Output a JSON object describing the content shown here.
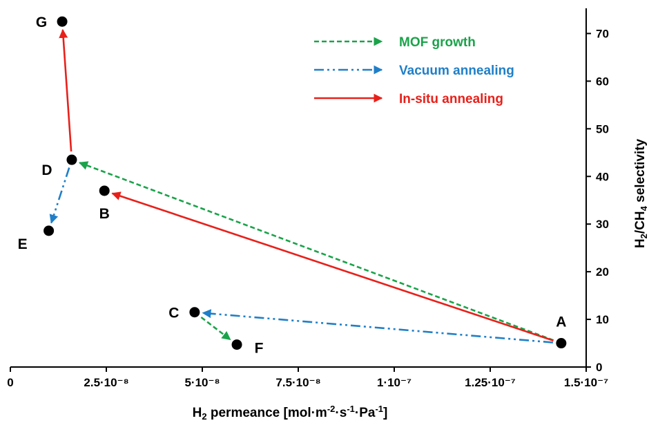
{
  "chart_data": {
    "type": "scatter",
    "xlabel": {
      "main": "H",
      "sub": "2",
      "rest": " permeance [mol·m",
      "sup1": "-2",
      "mid1": "·s",
      "sup2": "-1",
      "mid2": "·Pa",
      "sup3": "-1",
      "end": "]"
    },
    "ylabel": {
      "main": "H",
      "sub1": "2",
      "mid": "/CH",
      "sub2": "4",
      "rest": " selectivity"
    },
    "xlim": [
      0,
      1.5e-07
    ],
    "ylim": [
      0,
      75
    ],
    "x_ticks": [
      {
        "value": 0,
        "label": "0"
      },
      {
        "value": 2.5e-08,
        "label": "2.5·10⁻⁸"
      },
      {
        "value": 5e-08,
        "label": "5·10⁻⁸"
      },
      {
        "value": 7.5e-08,
        "label": "7.5·10⁻⁸"
      },
      {
        "value": 1e-07,
        "label": "1·10⁻⁷"
      },
      {
        "value": 1.25e-07,
        "label": "1.25·10⁻⁷"
      },
      {
        "value": 1.5e-07,
        "label": "1.5·10⁻⁷"
      }
    ],
    "y_ticks": [
      {
        "value": 0,
        "label": "0"
      },
      {
        "value": 10,
        "label": "10"
      },
      {
        "value": 20,
        "label": "20"
      },
      {
        "value": 30,
        "label": "30"
      },
      {
        "value": 40,
        "label": "40"
      },
      {
        "value": 50,
        "label": "50"
      },
      {
        "value": 60,
        "label": "60"
      },
      {
        "value": 70,
        "label": "70"
      }
    ],
    "y_axis_side": "right",
    "grid": false,
    "points": [
      {
        "label": "A",
        "x": 1.435e-07,
        "y": 5.0
      },
      {
        "label": "B",
        "x": 2.45e-08,
        "y": 37.0
      },
      {
        "label": "C",
        "x": 4.8e-08,
        "y": 11.5
      },
      {
        "label": "D",
        "x": 1.6e-08,
        "y": 43.5
      },
      {
        "label": "E",
        "x": 1e-08,
        "y": 28.6
      },
      {
        "label": "F",
        "x": 5.9e-08,
        "y": 4.7
      },
      {
        "label": "G",
        "x": 1.35e-08,
        "y": 72.5
      }
    ],
    "arrows": [
      {
        "from": "A",
        "to": "D",
        "style": "MOF growth"
      },
      {
        "from": "C",
        "to": "F",
        "style": "MOF growth"
      },
      {
        "from": "A",
        "to": "C",
        "style": "Vacuum annealing"
      },
      {
        "from": "D",
        "to": "E",
        "style": "Vacuum annealing"
      },
      {
        "from": "A",
        "to": "B",
        "style": "In-situ annealing"
      },
      {
        "from": "D",
        "to": "G",
        "style": "In-situ annealing"
      }
    ],
    "legend": {
      "placement": "top-right",
      "entries": [
        {
          "name": "MOF growth",
          "color": "#1aa34a",
          "dash": "dashed"
        },
        {
          "name": "Vacuum annealing",
          "color": "#1f7fc8",
          "dash": "dash-dot-dot"
        },
        {
          "name": "In-situ annealing",
          "color": "#e8201a",
          "dash": "solid"
        }
      ]
    }
  }
}
